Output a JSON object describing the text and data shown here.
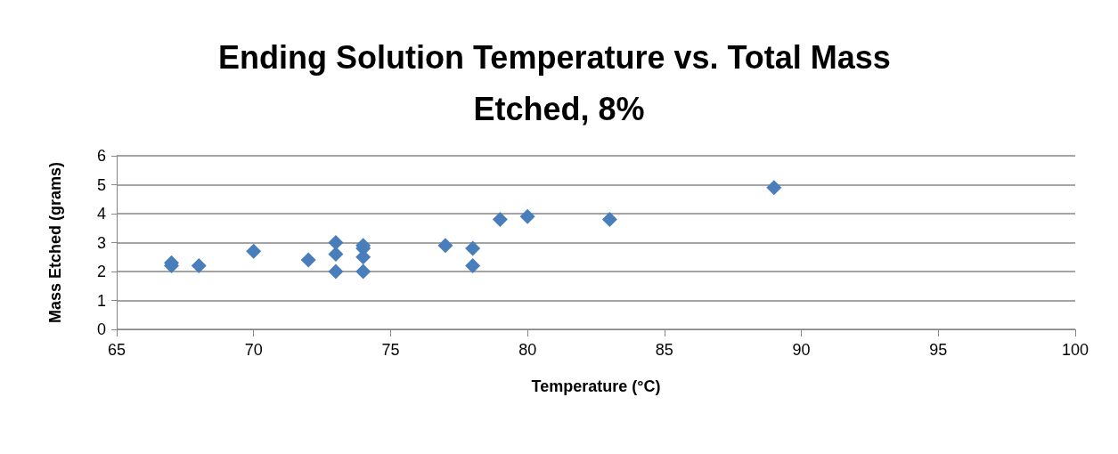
{
  "chart_data": {
    "type": "scatter",
    "title": "Ending Solution Temperature vs. Total Mass Etched, 8%",
    "xlabel": "Temperature (°C)",
    "ylabel": "Mass Etched (grams)",
    "x": [
      67,
      67,
      68,
      70,
      72,
      73,
      73,
      73,
      74,
      74,
      74,
      74,
      77,
      78,
      78,
      79,
      80,
      83,
      89
    ],
    "values": [
      2.3,
      2.2,
      2.2,
      2.7,
      2.4,
      3.0,
      2.6,
      2.0,
      2.9,
      2.8,
      2.5,
      2.0,
      2.9,
      2.8,
      2.2,
      3.8,
      3.9,
      3.8,
      4.9
    ],
    "color": "#4a7ebb",
    "marker": "diamond",
    "xlim": [
      65,
      100
    ],
    "xticks": [
      65,
      70,
      75,
      80,
      85,
      90,
      95,
      100
    ],
    "ylim": [
      0,
      6
    ],
    "yticks": [
      0,
      1,
      2,
      3,
      4,
      5,
      6
    ],
    "grid": "y"
  }
}
